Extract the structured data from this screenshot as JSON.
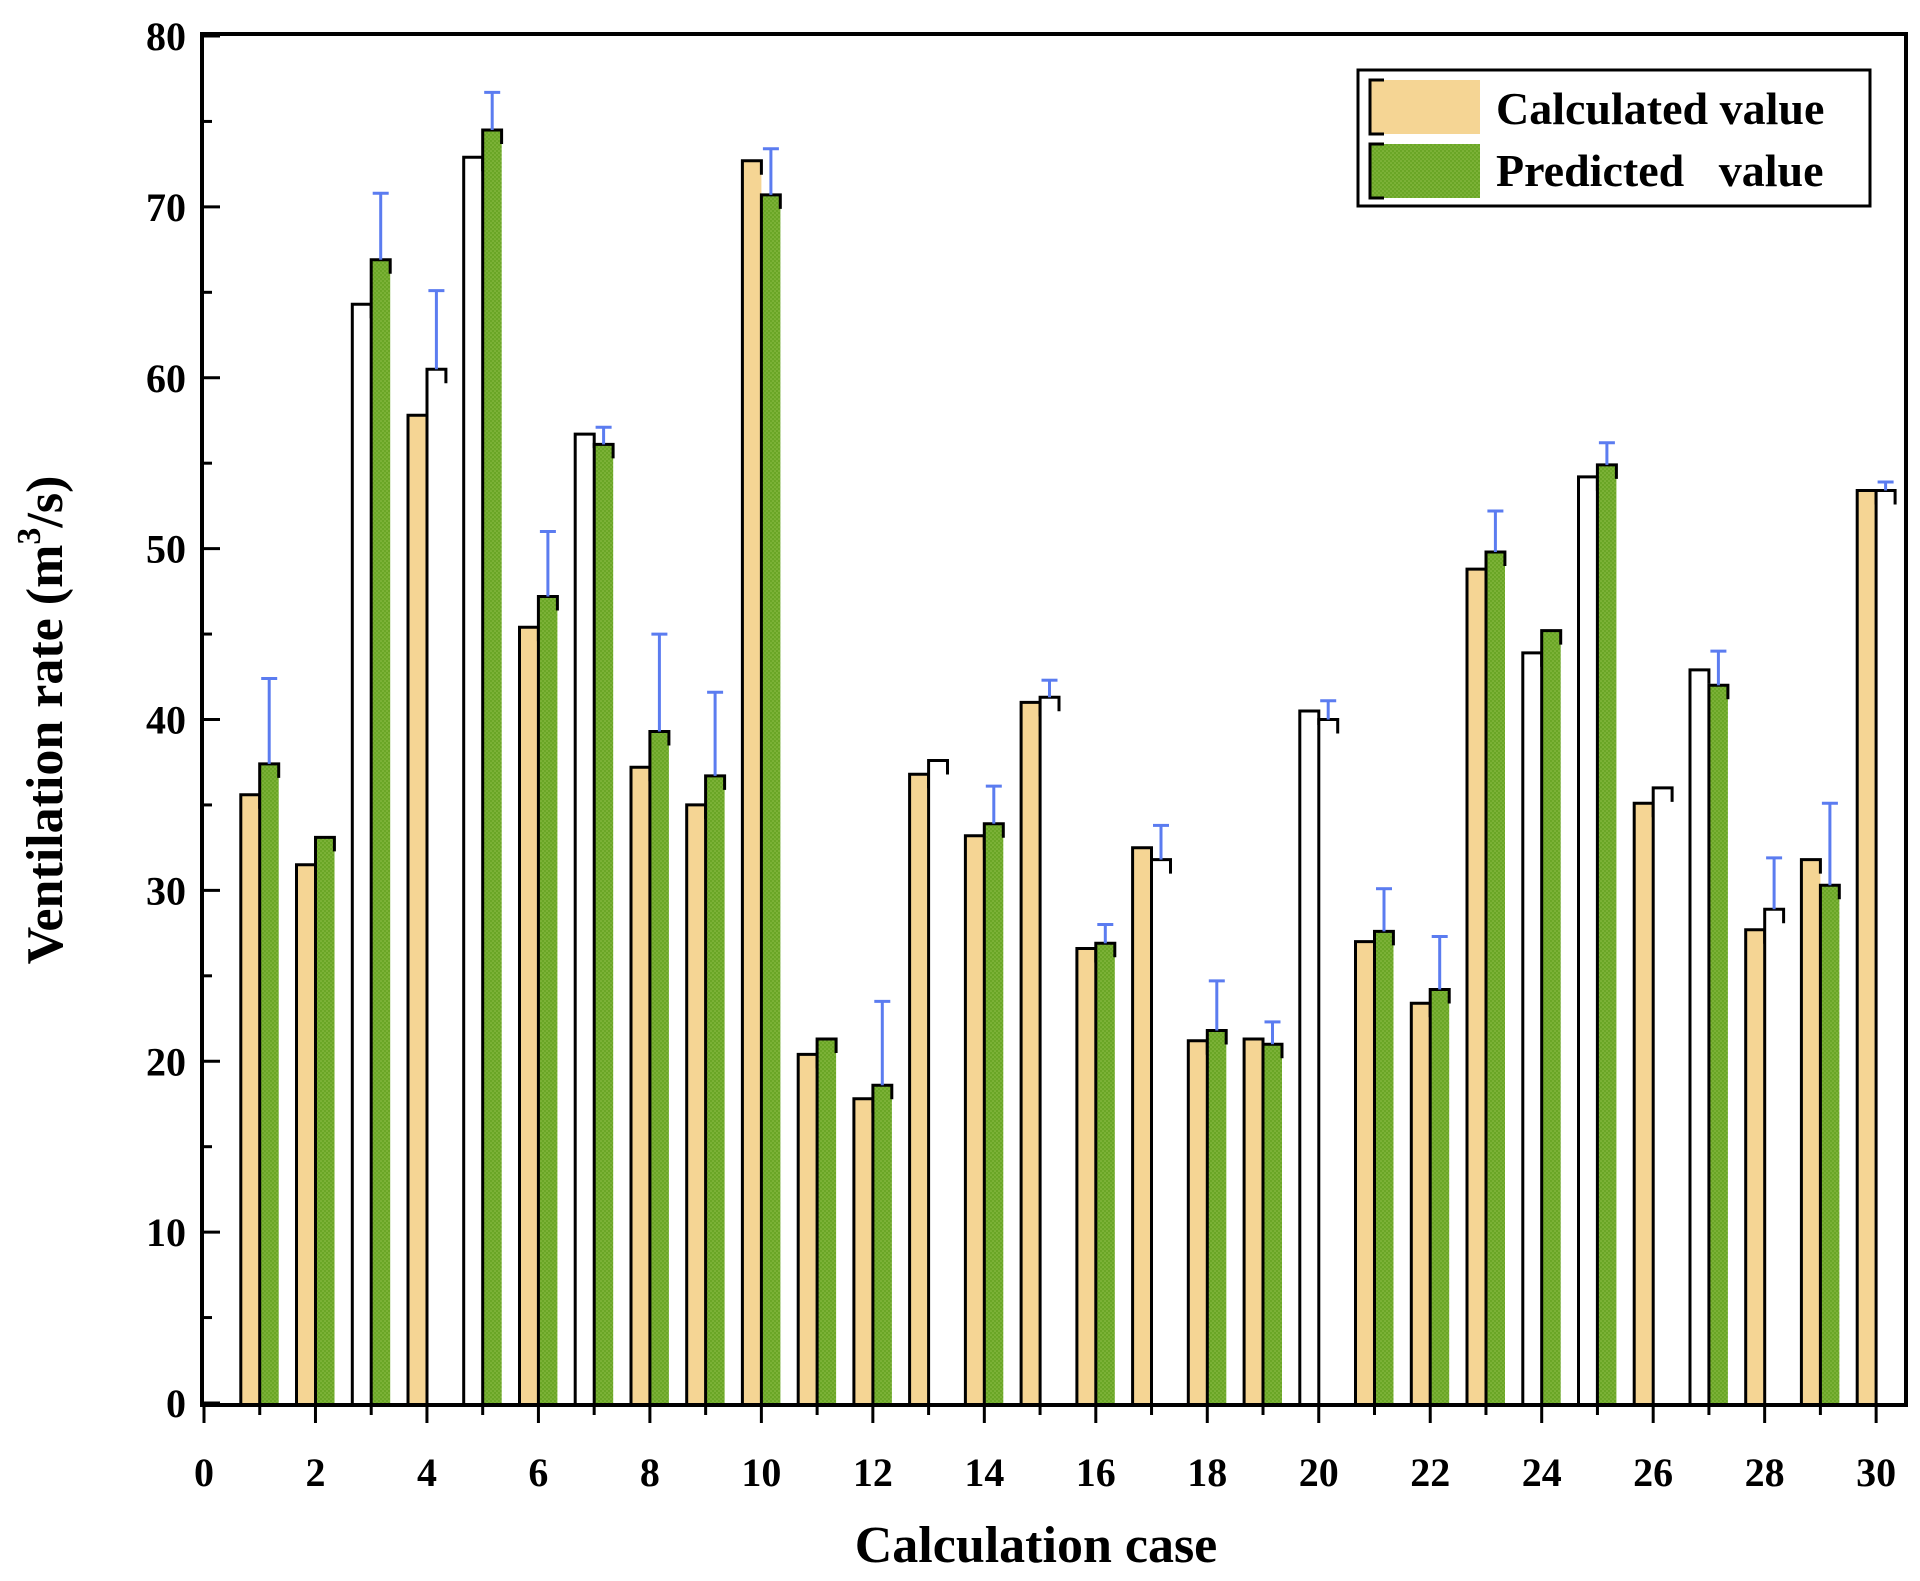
{
  "chart_data": {
    "type": "bar",
    "title": "",
    "xlabel": "Calculation case",
    "ylabel_main": "Ventilation rate (m",
    "ylabel_sup": "3",
    "ylabel_end": "/s)",
    "xlim": [
      0,
      30.5
    ],
    "ylim": [
      0,
      80
    ],
    "x_ticks": [
      "0",
      "2",
      "4",
      "6",
      "8",
      "10",
      "12",
      "14",
      "16",
      "18",
      "20",
      "22",
      "24",
      "26",
      "28",
      "30"
    ],
    "y_ticks": [
      "0",
      "10",
      "20",
      "30",
      "40",
      "50",
      "60",
      "70",
      "80"
    ],
    "legend_position": "top-right",
    "cases": [
      1,
      2,
      3,
      4,
      5,
      6,
      7,
      8,
      9,
      10,
      11,
      12,
      13,
      14,
      15,
      16,
      17,
      18,
      19,
      20,
      21,
      22,
      23,
      24,
      25,
      26,
      27,
      28,
      29,
      30
    ],
    "series": [
      {
        "name": "Calculated value",
        "color": "#f5d594",
        "values": [
          35.6,
          31.5,
          64.3,
          57.8,
          72.9,
          45.4,
          56.7,
          37.2,
          35.0,
          72.7,
          20.4,
          17.8,
          36.8,
          33.2,
          41.0,
          26.6,
          32.5,
          21.2,
          21.3,
          40.5,
          27.0,
          23.4,
          48.8,
          43.9,
          54.2,
          35.1,
          42.9,
          27.7,
          31.8,
          53.4
        ],
        "filled": [
          true,
          true,
          false,
          true,
          false,
          true,
          false,
          true,
          true,
          true,
          true,
          true,
          true,
          true,
          true,
          true,
          true,
          true,
          true,
          false,
          true,
          true,
          true,
          false,
          false,
          true,
          false,
          true,
          true,
          true
        ]
      },
      {
        "name": "Predicted   value",
        "color": "#6aa626",
        "values": [
          37.4,
          33.1,
          66.9,
          60.5,
          74.5,
          47.2,
          56.1,
          39.3,
          36.7,
          70.7,
          21.3,
          18.6,
          37.6,
          33.9,
          41.3,
          26.9,
          31.8,
          21.8,
          21.0,
          40.0,
          27.6,
          24.2,
          49.8,
          45.2,
          54.9,
          36.0,
          42.0,
          28.9,
          30.3,
          53.4
        ],
        "filled": [
          true,
          true,
          true,
          false,
          true,
          true,
          true,
          true,
          true,
          true,
          true,
          true,
          false,
          true,
          false,
          true,
          false,
          true,
          true,
          false,
          true,
          true,
          true,
          true,
          true,
          false,
          true,
          false,
          true,
          false
        ],
        "error_top": [
          42.4,
          null,
          70.8,
          65.1,
          76.7,
          51.0,
          57.1,
          45.0,
          41.6,
          73.4,
          null,
          23.5,
          null,
          36.1,
          42.3,
          28.0,
          33.8,
          24.7,
          22.3,
          41.1,
          30.1,
          27.3,
          52.2,
          null,
          56.2,
          null,
          44.0,
          31.9,
          35.1,
          53.9
        ]
      }
    ]
  }
}
